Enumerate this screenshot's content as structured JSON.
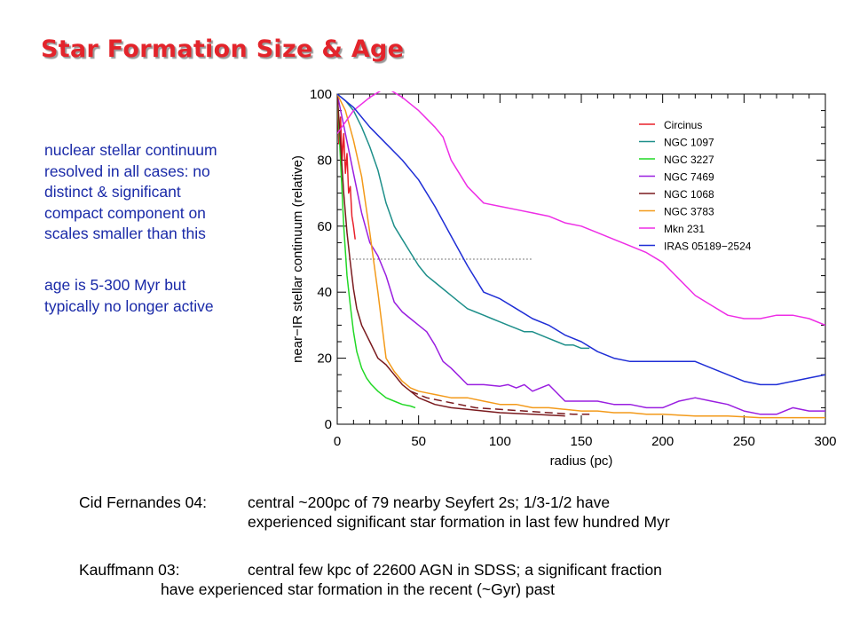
{
  "title": "Star Formation Size & Age",
  "notes": {
    "note1_lines": [
      "nuclear stellar continuum",
      "resolved in all cases: no",
      "distinct & significant",
      "compact component on",
      "scales smaller than this"
    ],
    "note2_lines": [
      "age is  5-300 Myr but",
      "typically no longer active"
    ]
  },
  "references": [
    {
      "label": "Cid Fernandes 04:",
      "line1": "central ~200pc of 79 nearby Seyfert 2s; 1/3-1/2 have",
      "line2": "experienced significant star formation in last few hundred Myr"
    },
    {
      "label": "Kauffmann 03:",
      "line1": "central few kpc of 22600 AGN in SDSS; a significant fraction",
      "line2": "have experienced star formation in the recent (~Gyr) past"
    }
  ],
  "chart_data": {
    "type": "line",
    "xlabel": "radius (pc)",
    "ylabel": "near−IR stellar continuum (relative)",
    "xlim": [
      0,
      300
    ],
    "ylim": [
      0,
      100
    ],
    "xticks": [
      0,
      50,
      100,
      150,
      200,
      250,
      300
    ],
    "yticks": [
      0,
      20,
      40,
      60,
      80,
      100
    ],
    "grid": false,
    "legend_position": "top-right",
    "reference_line": {
      "y": 50,
      "x": [
        5,
        120
      ],
      "style": "dotted"
    },
    "series": [
      {
        "name": "Circinus",
        "color": "#e8202a",
        "style": "solid",
        "x": [
          0,
          1,
          2,
          3,
          4,
          5,
          6,
          7,
          8,
          9,
          10,
          11
        ],
        "y": [
          100,
          85,
          93,
          80,
          88,
          76,
          82,
          70,
          72,
          63,
          60,
          56
        ]
      },
      {
        "name": "NGC 1097",
        "color": "#1e8f8a",
        "style": "solid",
        "x": [
          0,
          5,
          10,
          15,
          20,
          25,
          30,
          35,
          40,
          45,
          50,
          55,
          60,
          65,
          70,
          75,
          80,
          85,
          90,
          95,
          100,
          105,
          110,
          115,
          120,
          125,
          130,
          135,
          140,
          145,
          150,
          155
        ],
        "y": [
          100,
          98,
          95,
          90,
          84,
          77,
          67,
          60,
          56,
          52,
          48,
          45,
          43,
          41,
          39,
          37,
          35,
          34,
          33,
          32,
          31,
          30,
          29,
          28,
          28,
          27,
          26,
          25,
          24,
          24,
          23,
          23
        ]
      },
      {
        "name": "NGC 3227",
        "color": "#22d826",
        "style": "solid",
        "x": [
          0,
          2,
          4,
          6,
          8,
          10,
          12,
          15,
          18,
          21,
          25,
          30,
          35,
          40,
          45,
          48
        ],
        "y": [
          100,
          80,
          60,
          45,
          36,
          28,
          22,
          17,
          14,
          12,
          10,
          8,
          7,
          6,
          5.5,
          5
        ]
      },
      {
        "name": "NGC 7469",
        "color": "#9a1fe0",
        "style": "solid",
        "x": [
          0,
          5,
          10,
          15,
          20,
          25,
          30,
          35,
          40,
          45,
          50,
          55,
          60,
          65,
          70,
          80,
          90,
          100,
          105,
          110,
          115,
          120,
          125,
          130,
          140,
          150,
          160,
          170,
          180,
          190,
          200,
          210,
          220,
          230,
          240,
          250,
          260,
          270,
          280,
          290,
          300
        ],
        "y": [
          100,
          88,
          76,
          64,
          55,
          51,
          45,
          37,
          34,
          32,
          30,
          28,
          24,
          19,
          17,
          12,
          12,
          11.5,
          12,
          11,
          12,
          10,
          11,
          12,
          7,
          7,
          7,
          6,
          6,
          5,
          5,
          7,
          8,
          7,
          6,
          4,
          3,
          3,
          5,
          4,
          4
        ]
      },
      {
        "name": "NGC 1068",
        "color": "#7a1a1e",
        "style": "solid",
        "x": [
          0,
          2,
          4,
          6,
          8,
          10,
          12,
          15,
          20,
          25,
          30,
          35,
          40,
          45,
          50,
          60,
          70,
          80,
          90,
          100,
          120,
          140
        ],
        "y": [
          100,
          85,
          70,
          58,
          49,
          41,
          35,
          30,
          25,
          20,
          18,
          15,
          12,
          10,
          8,
          6,
          5,
          4.5,
          4,
          3.5,
          3,
          2.5
        ]
      },
      {
        "name": "NGC 3783",
        "color": "#f39a1a",
        "style": "solid",
        "x": [
          0,
          5,
          10,
          15,
          20,
          25,
          30,
          35,
          40,
          45,
          50,
          55,
          60,
          70,
          80,
          90,
          100,
          110,
          120,
          130,
          140,
          150,
          160,
          170,
          180,
          190,
          200,
          220,
          240,
          260,
          280,
          300
        ],
        "y": [
          100,
          95,
          86,
          75,
          58,
          40,
          20,
          16,
          13,
          11,
          10,
          9.5,
          9,
          8,
          8,
          7,
          6,
          6,
          5,
          5,
          4.5,
          4,
          4,
          3.5,
          3.5,
          3,
          3,
          2.5,
          2.5,
          2,
          2,
          2
        ]
      },
      {
        "name": "Mkn 231",
        "color": "#ee2ee6",
        "style": "solid",
        "x": [
          0,
          10,
          20,
          30,
          40,
          50,
          60,
          65,
          70,
          80,
          90,
          100,
          110,
          120,
          130,
          140,
          150,
          160,
          170,
          180,
          190,
          200,
          210,
          220,
          230,
          240,
          250,
          260,
          270,
          280,
          290,
          300
        ],
        "y": [
          88,
          95,
          99,
          102,
          99,
          95,
          90,
          87,
          80,
          72,
          67,
          66,
          65,
          64,
          63,
          61,
          60,
          58,
          56,
          54,
          52,
          49,
          44,
          39,
          36,
          33,
          32,
          32,
          33,
          33,
          32,
          30
        ]
      },
      {
        "name": "IRAS 05189−2524",
        "color": "#1f2ed6",
        "style": "solid",
        "x": [
          0,
          10,
          20,
          30,
          40,
          50,
          60,
          70,
          80,
          90,
          100,
          110,
          120,
          130,
          140,
          150,
          160,
          170,
          180,
          190,
          200,
          210,
          220,
          230,
          240,
          250,
          260,
          270,
          280,
          290,
          300
        ],
        "y": [
          100,
          96,
          90,
          85,
          80,
          74,
          66,
          57,
          48,
          40,
          38,
          35,
          32,
          30,
          27,
          25,
          22,
          20,
          19,
          19,
          19,
          19,
          19,
          17,
          15,
          13,
          12,
          12,
          13,
          14,
          15
        ]
      },
      {
        "name": "",
        "color": "#7a1a1e",
        "style": "dashed",
        "x": [
          45,
          55,
          65,
          75,
          85,
          100,
          115,
          130,
          145,
          155
        ],
        "y": [
          10,
          8,
          7,
          6,
          5,
          4.5,
          4,
          3.5,
          3,
          3
        ]
      }
    ]
  }
}
